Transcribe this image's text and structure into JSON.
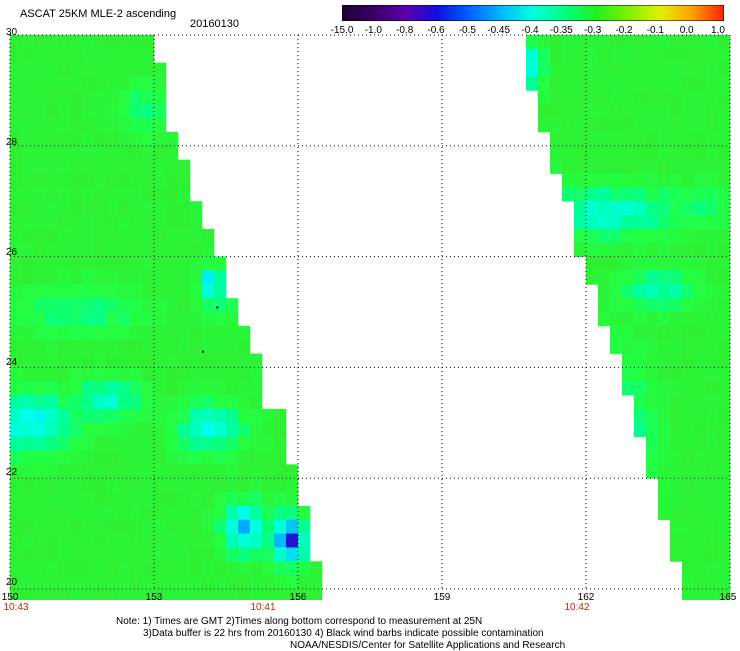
{
  "header": {
    "title": "ASCAT 25KM MLE-2 ascending",
    "date": "20160130"
  },
  "colorbar": {
    "labels": [
      "-15.0",
      "-1.0",
      "-0.8",
      "-0.6",
      "-0.5",
      "-0.45",
      "-0.4",
      "-0.35",
      "-0.3",
      "-0.2",
      "-0.1",
      "0.0",
      "1.0"
    ],
    "colors": [
      "#1a0033",
      "#3a0066",
      "#5a00aa",
      "#1010e0",
      "#0060ff",
      "#00b8ff",
      "#00ffe0",
      "#00ff80",
      "#20f020",
      "#80f000",
      "#e0f000",
      "#ffa000",
      "#ff2000"
    ]
  },
  "chart_data": {
    "type": "heatmap",
    "title": "ASCAT 25KM MLE-2 ascending",
    "date": "20160130",
    "x_axis": {
      "ticks": [
        150,
        153,
        156,
        159,
        162,
        165
      ],
      "range": [
        150,
        165
      ]
    },
    "y_axis": {
      "ticks": [
        20,
        22,
        24,
        26,
        28,
        30
      ],
      "range": [
        20,
        30
      ]
    },
    "pass_times": [
      {
        "label": "10:43",
        "lon": 150
      },
      {
        "label": "10:41",
        "lon": 155.3
      },
      {
        "label": "10:42",
        "lon": 161.8
      }
    ],
    "swaths": [
      {
        "name": "west",
        "lon_min": 150,
        "right_edge": [
          [
            30,
            153.0
          ],
          [
            29,
            153.3
          ],
          [
            28,
            153.6
          ],
          [
            27,
            154.0
          ],
          [
            26,
            154.4
          ],
          [
            25,
            154.9
          ],
          [
            24,
            155.3
          ],
          [
            23,
            155.7
          ],
          [
            22,
            156.1
          ],
          [
            21,
            156.4
          ],
          [
            20,
            156.6
          ]
        ]
      },
      {
        "name": "east",
        "lon_max": 165,
        "left_edge": [
          [
            30,
            160.6
          ],
          [
            29,
            160.9
          ],
          [
            28,
            161.2
          ],
          [
            27,
            161.6
          ],
          [
            26,
            161.9
          ],
          [
            25,
            162.3
          ],
          [
            24,
            162.7
          ],
          [
            23,
            163.0
          ],
          [
            22,
            163.4
          ],
          [
            21,
            163.7
          ],
          [
            20,
            164.0
          ]
        ]
      }
    ],
    "grid": true,
    "background_level": "-0.3"
  },
  "notes": {
    "line1": "Note: 1) Times are GMT 2)Times along bottom correspond to measurement at 25N",
    "line2": "3)Data buffer is 22 hrs from 20160130 4) Black wind barbs indicate possible contamination",
    "line3": "NOAA/NESDIS/Center for Satellite Applications and Research"
  }
}
